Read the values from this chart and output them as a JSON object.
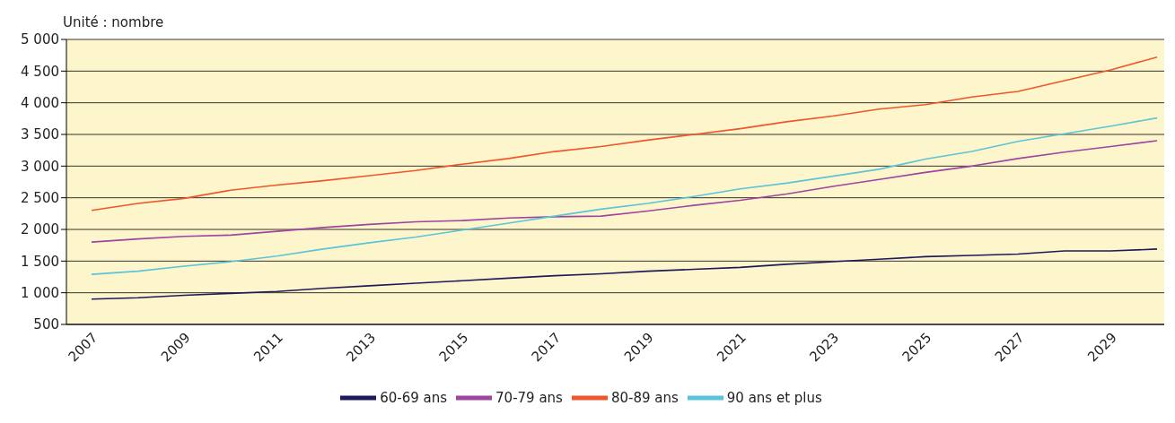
{
  "chart_data": {
    "type": "line",
    "ylabel": "Unité : nombre",
    "categories": [
      "2007",
      null,
      "2009",
      null,
      "2011",
      null,
      "2013",
      null,
      "2015",
      null,
      "2017",
      null,
      "2019",
      null,
      "2021",
      null,
      "2023",
      null,
      "2025",
      null,
      "2027",
      null,
      "2029",
      null
    ],
    "series": [
      {
        "name": "60-69 ans",
        "color": "#1f1a5c",
        "values": [
          900,
          920,
          960,
          990,
          1020,
          1070,
          1110,
          1150,
          1190,
          1230,
          1270,
          1300,
          1340,
          1370,
          1400,
          1450,
          1490,
          1530,
          1570,
          1590,
          1610,
          1660,
          1660,
          1690
        ]
      },
      {
        "name": "70-79 ans",
        "color": "#a044a0",
        "values": [
          1800,
          1850,
          1890,
          1910,
          1970,
          2030,
          2080,
          2120,
          2140,
          2180,
          2200,
          2210,
          2290,
          2380,
          2460,
          2560,
          2680,
          2790,
          2900,
          3000,
          3120,
          3220,
          3310,
          3400
        ]
      },
      {
        "name": "80-89 ans",
        "color": "#f0562a",
        "values": [
          2300,
          2410,
          2490,
          2620,
          2700,
          2770,
          2850,
          2930,
          3030,
          3120,
          3230,
          3310,
          3410,
          3500,
          3590,
          3700,
          3790,
          3900,
          3970,
          4090,
          4180,
          4350,
          4520,
          4720
        ]
      },
      {
        "name": "90 ans et plus",
        "color": "#5bc4d8",
        "values": [
          1290,
          1340,
          1420,
          1490,
          1580,
          1690,
          1790,
          1880,
          1990,
          2100,
          2210,
          2320,
          2410,
          2520,
          2640,
          2730,
          2840,
          2950,
          3110,
          3230,
          3390,
          3510,
          3630,
          3760
        ]
      }
    ],
    "ylim": [
      500,
      5000
    ],
    "yticks": [
      {
        "value": 500,
        "label": "500"
      },
      {
        "value": 1000,
        "label": "1 000"
      },
      {
        "value": 1500,
        "label": "1 500"
      },
      {
        "value": 2000,
        "label": "2 000"
      },
      {
        "value": 2500,
        "label": "2 500"
      },
      {
        "value": 3000,
        "label": "3 000"
      },
      {
        "value": 3500,
        "label": "3 500"
      },
      {
        "value": 4000,
        "label": "4 000"
      },
      {
        "value": 4500,
        "label": "4 500"
      },
      {
        "value": 5000,
        "label": "5 000"
      }
    ],
    "grid": "y",
    "legend": "bottom",
    "marker": "none",
    "line_style": "solid"
  }
}
